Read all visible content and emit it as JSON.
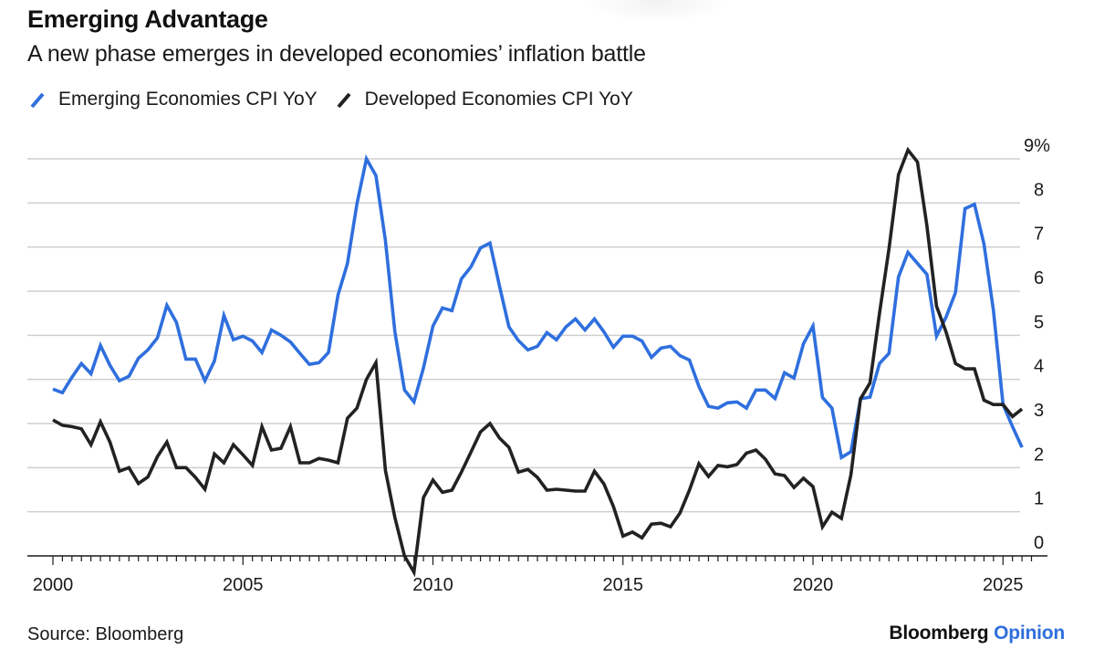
{
  "header": {
    "title": "Emerging Advantage",
    "subtitle": "A new phase emerges in developed economies’ inflation battle"
  },
  "legend": [
    {
      "label": "Emerging Economies CPI YoY",
      "color": "#2f6fde",
      "icon": "slash-line-icon"
    },
    {
      "label": "Developed Economies CPI YoY",
      "color": "#222222",
      "icon": "slash-line-icon"
    }
  ],
  "footer": {
    "source": "Source: Bloomberg",
    "brand_primary": "Bloomberg",
    "brand_secondary": "Opinion",
    "brand_accent": "#2f6fde"
  },
  "chart_data": {
    "type": "line",
    "title": "Emerging Advantage",
    "subtitle": "A new phase emerges in developed economies’ inflation battle",
    "xlabel": "",
    "ylabel": "",
    "frequency": "quarterly",
    "x_start": 2000.0,
    "x_step": 0.25,
    "xlim": [
      1999.33,
      2026.7
    ],
    "ylim": [
      0,
      9
    ],
    "y_ticks": [
      0,
      1,
      2,
      3,
      4,
      5,
      6,
      7,
      8,
      9
    ],
    "y_tick_labels": [
      "0",
      "1",
      "2",
      "3",
      "4",
      "5",
      "6",
      "7",
      "8",
      "9%"
    ],
    "x_ticks": [
      2000,
      2005,
      2010,
      2015,
      2020,
      2025
    ],
    "x_tick_labels": [
      "2000",
      "2005",
      "2010",
      "2015",
      "2020",
      "2025"
    ],
    "grid": "horizontal",
    "y_axis_position": "right",
    "legend_position": "top-left",
    "series": [
      {
        "name": "Emerging Economies CPI YoY",
        "color": "#2f6fde",
        "values": [
          3.78,
          3.7,
          4.05,
          4.36,
          4.13,
          4.77,
          4.32,
          3.97,
          4.07,
          4.48,
          4.67,
          4.94,
          5.68,
          5.29,
          4.46,
          4.46,
          3.97,
          4.42,
          5.45,
          4.9,
          4.98,
          4.87,
          4.61,
          5.12,
          5.0,
          4.85,
          4.59,
          4.34,
          4.38,
          4.61,
          5.91,
          6.63,
          7.98,
          9.0,
          8.62,
          7.15,
          5.08,
          3.76,
          3.49,
          4.26,
          5.21,
          5.62,
          5.56,
          6.28,
          6.55,
          6.98,
          7.09,
          6.12,
          5.19,
          4.88,
          4.67,
          4.75,
          5.06,
          4.9,
          5.19,
          5.37,
          5.12,
          5.37,
          5.08,
          4.73,
          4.98,
          4.98,
          4.87,
          4.5,
          4.71,
          4.75,
          4.54,
          4.44,
          3.84,
          3.39,
          3.35,
          3.47,
          3.49,
          3.35,
          3.76,
          3.76,
          3.57,
          4.15,
          4.03,
          4.81,
          5.21,
          3.59,
          3.35,
          2.23,
          2.36,
          3.56,
          3.6,
          4.36,
          4.59,
          6.32,
          6.88,
          6.63,
          6.38,
          4.98,
          5.41,
          5.97,
          7.87,
          7.97,
          7.07,
          5.56,
          3.43,
          2.93,
          2.46
        ]
      },
      {
        "name": "Developed Economies CPI YoY",
        "color": "#222222",
        "values": [
          3.08,
          2.96,
          2.93,
          2.88,
          2.52,
          3.04,
          2.58,
          1.92,
          2.0,
          1.64,
          1.79,
          2.25,
          2.58,
          2.0,
          2.0,
          1.78,
          1.51,
          2.31,
          2.11,
          2.52,
          2.29,
          2.05,
          2.93,
          2.4,
          2.44,
          2.93,
          2.11,
          2.11,
          2.21,
          2.17,
          2.11,
          3.12,
          3.35,
          4.0,
          4.38,
          1.94,
          0.87,
          0.0,
          -0.37,
          1.32,
          1.72,
          1.44,
          1.49,
          1.9,
          2.35,
          2.81,
          3.0,
          2.67,
          2.46,
          1.9,
          1.96,
          1.78,
          1.49,
          1.51,
          1.49,
          1.47,
          1.47,
          1.92,
          1.63,
          1.12,
          0.45,
          0.54,
          0.41,
          0.72,
          0.74,
          0.66,
          0.97,
          1.49,
          2.09,
          1.8,
          2.05,
          2.02,
          2.07,
          2.33,
          2.4,
          2.19,
          1.86,
          1.82,
          1.55,
          1.76,
          1.57,
          0.66,
          0.99,
          0.85,
          1.84,
          3.56,
          3.92,
          5.5,
          6.96,
          8.64,
          9.2,
          8.93,
          7.48,
          5.66,
          5.08,
          4.36,
          4.24,
          4.24,
          3.53,
          3.43,
          3.43,
          3.16,
          3.33
        ]
      }
    ]
  }
}
